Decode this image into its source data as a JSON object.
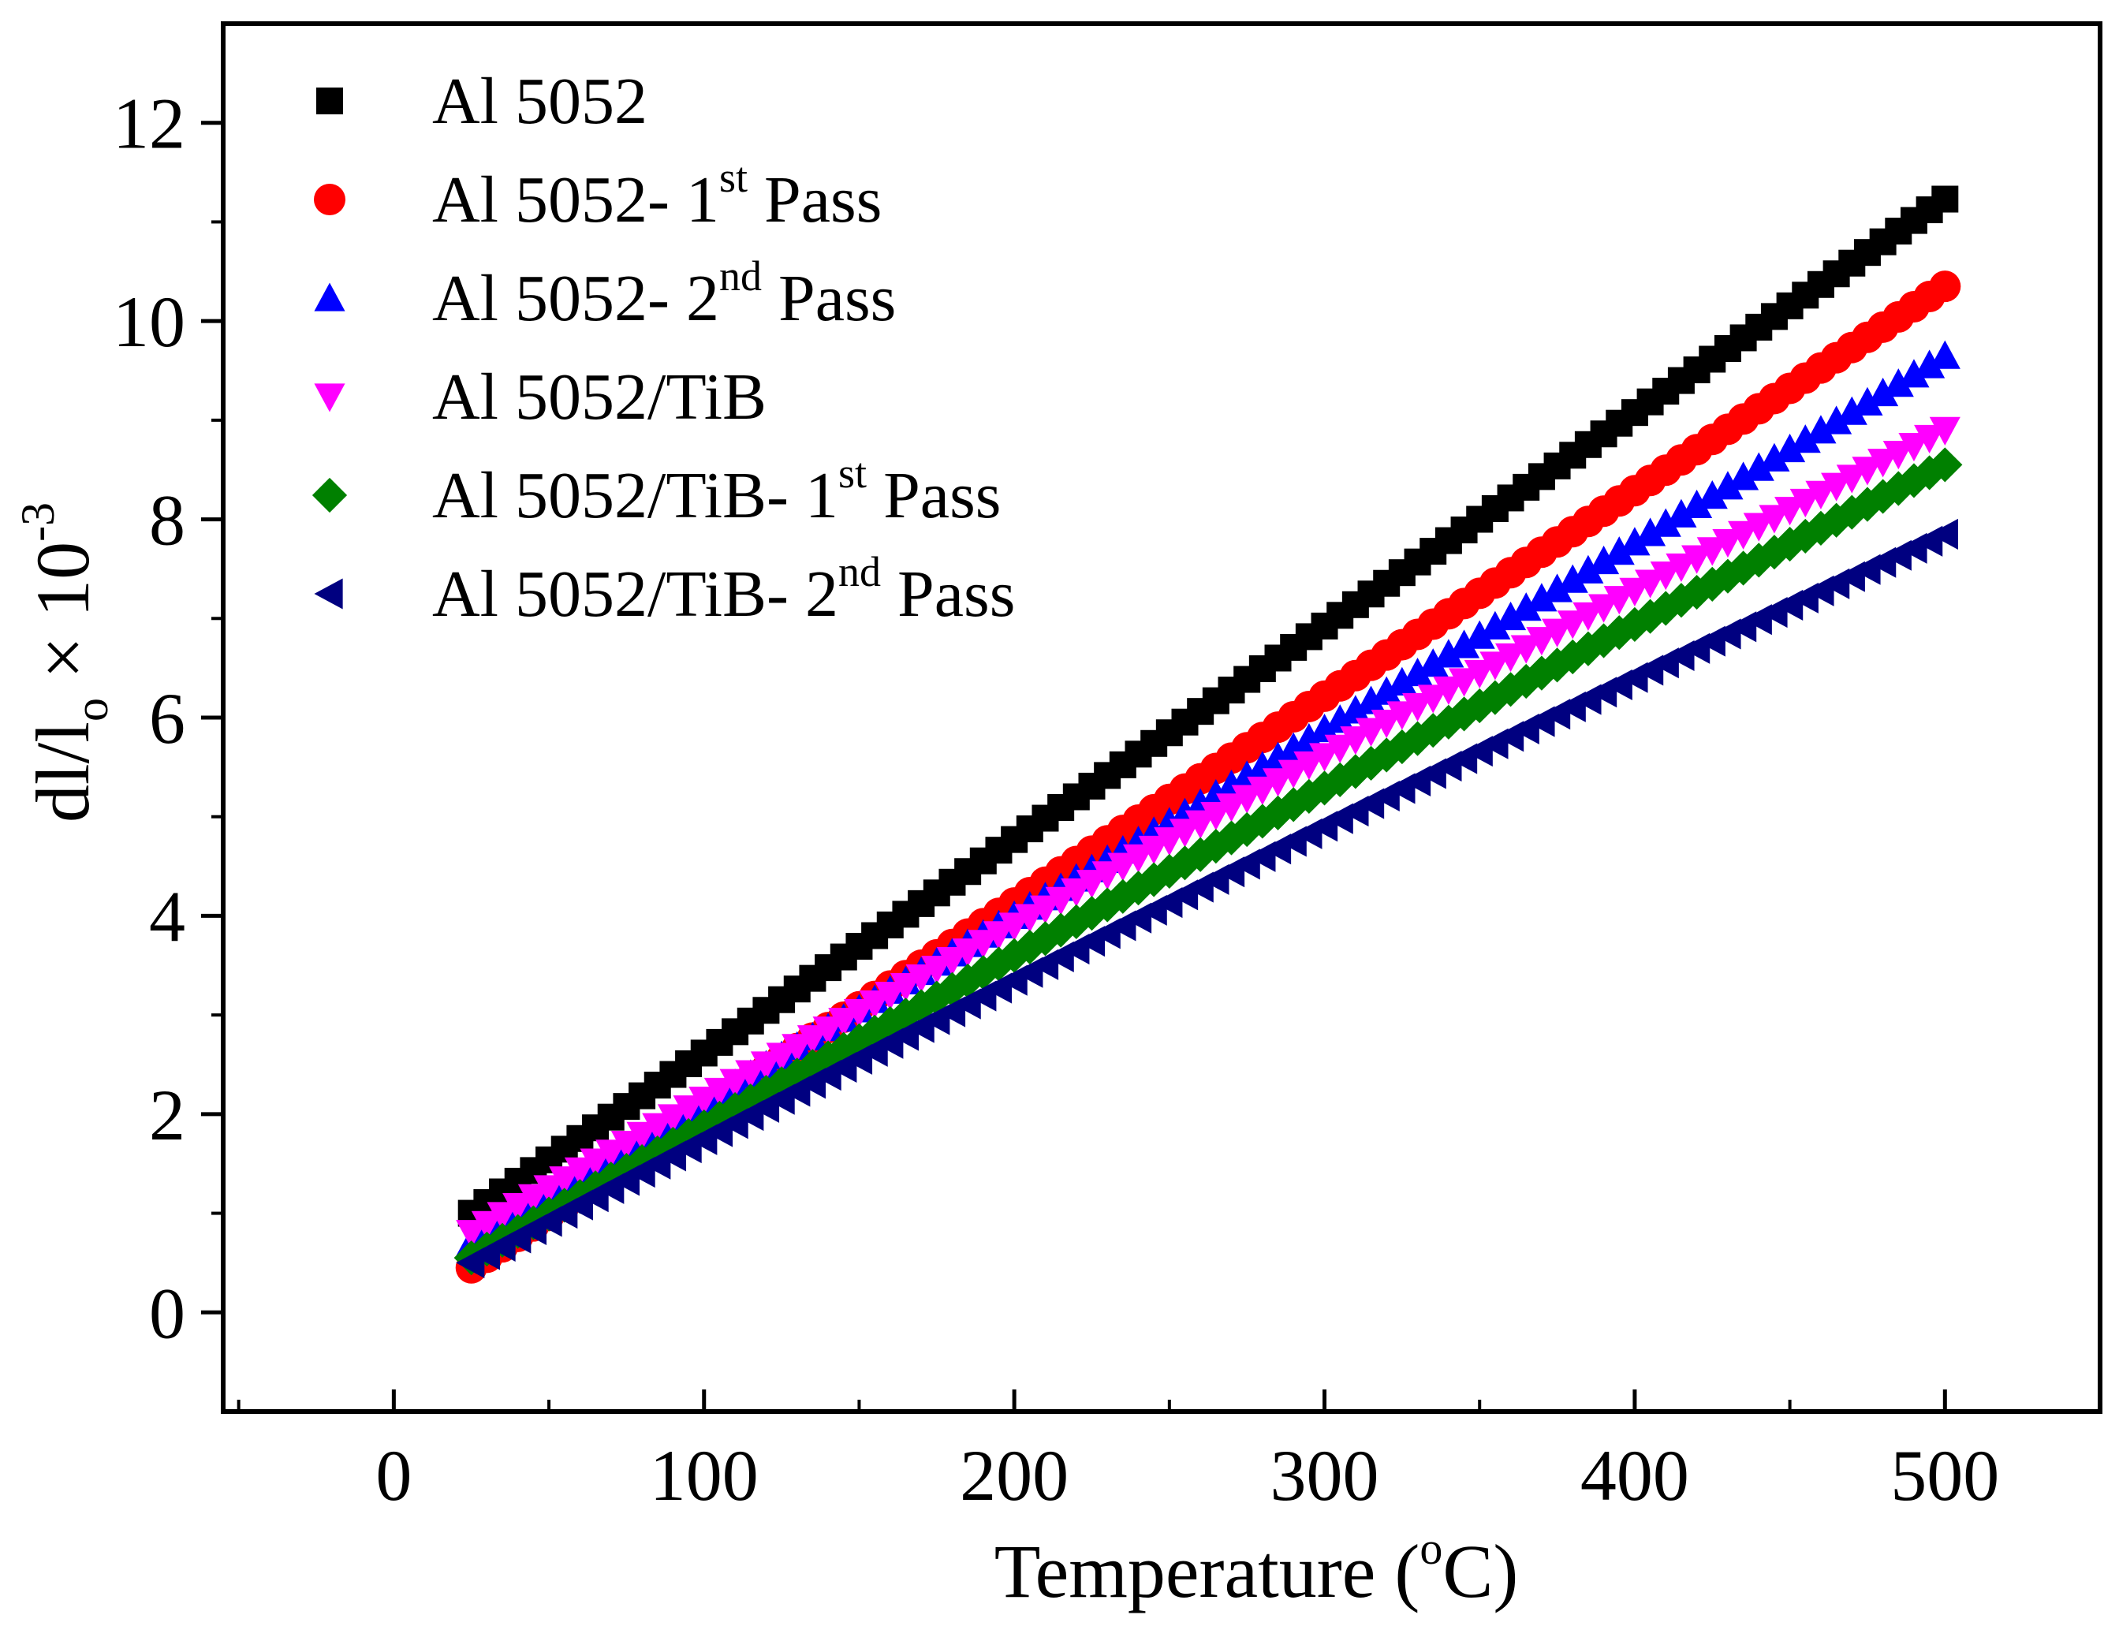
{
  "chart_data": {
    "type": "scatter",
    "title": "",
    "xlabel": {
      "main": "Temperature (",
      "sup": "o",
      "tail": "C)"
    },
    "ylabel": {
      "main": "dl/l",
      "sub": "o",
      "mid": " × 10",
      "sup": "-3"
    },
    "xlim": [
      -55,
      550
    ],
    "ylim": [
      -1,
      13
    ],
    "xticks": [
      0,
      100,
      200,
      300,
      400,
      500
    ],
    "xtick_labels": [
      "0",
      "100",
      "200",
      "300",
      "400",
      "500"
    ],
    "yticks": [
      0,
      2,
      4,
      6,
      8,
      10,
      12
    ],
    "ytick_labels": [
      "0",
      "2",
      "4",
      "6",
      "8",
      "10",
      "12"
    ],
    "grid": false,
    "legend_position": "top-left",
    "x_start": 25,
    "x_end": 500,
    "x_step": 5,
    "series": [
      {
        "name": "Al 5052",
        "label_main": "Al 5052",
        "label_sup": "",
        "label_tail": "",
        "marker": "square",
        "color": "#000000",
        "y_start": 1.0,
        "y_mid": 4.77,
        "y_end": 11.23
      },
      {
        "name": "Al 5052- 1st Pass",
        "label_main": "Al 5052- 1",
        "label_sup": "st",
        "label_tail": " Pass",
        "marker": "circle",
        "color": "#ff0000",
        "y_start": 0.45,
        "y_mid": 4.13,
        "y_end": 10.35
      },
      {
        "name": "Al 5052- 2nd Pass",
        "label_main": "Al 5052- 2",
        "label_sup": "nd",
        "label_tail": " Pass",
        "marker": "triangle-up",
        "color": "#0000ff",
        "y_start": 0.7,
        "y_mid": 4.0,
        "y_end": 9.65
      },
      {
        "name": "Al 5052/TiB",
        "label_main": "Al 5052/TiB",
        "label_sup": "",
        "label_tail": "",
        "marker": "triangle-down",
        "color": "#ff00ff",
        "y_start": 0.8,
        "y_mid": 3.9,
        "y_end": 8.9
      },
      {
        "name": "Al 5052/TiB- 1st Pass",
        "label_main": "Al 5052/TiB- 1",
        "label_sup": "st",
        "label_tail": " Pass",
        "marker": "diamond",
        "color": "#008000",
        "y_start": 0.55,
        "y_mid": 3.6,
        "y_end": 8.55
      },
      {
        "name": "Al 5052/TiB- 2nd Pass",
        "label_main": "Al 5052/TiB- 2",
        "label_sup": "nd",
        "label_tail": " Pass",
        "marker": "triangle-left",
        "color": "#000080",
        "y_start": 0.5,
        "y_mid": 3.35,
        "y_end": 7.85
      }
    ]
  }
}
